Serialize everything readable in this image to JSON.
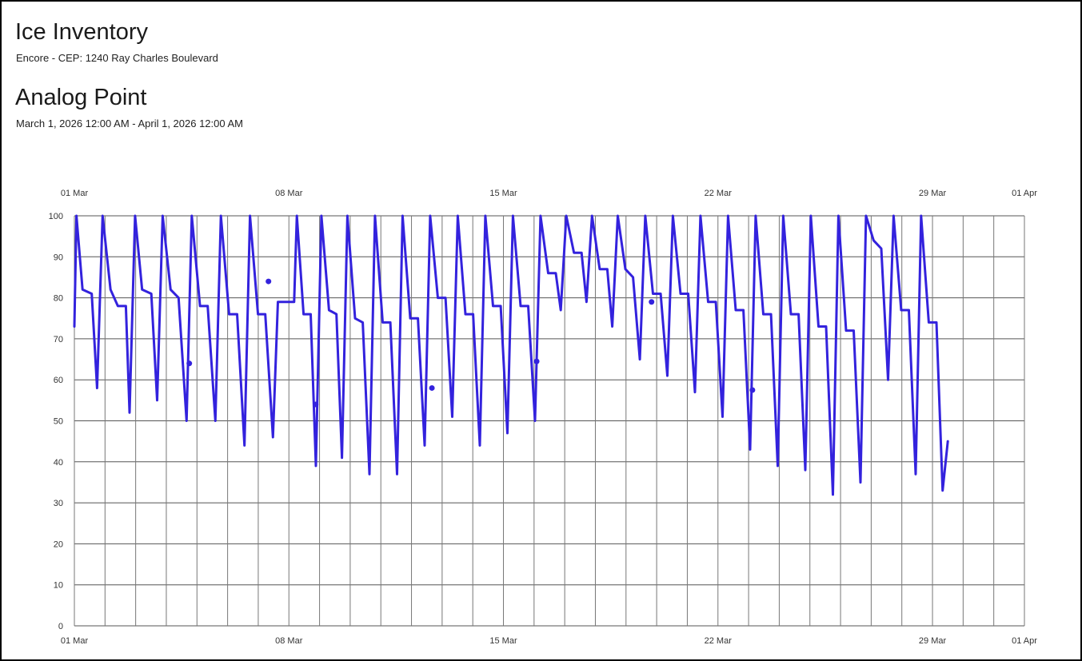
{
  "header": {
    "title": "Ice Inventory",
    "subtitle": "Encore - CEP: 1240 Ray Charles Boulevard"
  },
  "section": {
    "title": "Analog Point",
    "date_range": "March 1, 2026 12:00 AM - April 1, 2026 12:00 AM"
  },
  "chart_data": {
    "type": "line",
    "title": "Analog Point",
    "xlabel": "",
    "ylabel": "",
    "x_unit": "day",
    "x_range": [
      "2026-03-01",
      "2026-04-01"
    ],
    "ylim": [
      0,
      100
    ],
    "yticks": [
      0,
      10,
      20,
      30,
      40,
      50,
      60,
      70,
      80,
      90,
      100
    ],
    "xticks": [
      {
        "date": "2026-03-01",
        "label": "01 Mar"
      },
      {
        "date": "2026-03-08",
        "label": "08 Mar"
      },
      {
        "date": "2026-03-15",
        "label": "15 Mar"
      },
      {
        "date": "2026-03-22",
        "label": "22 Mar"
      },
      {
        "date": "2026-03-29",
        "label": "29 Mar"
      },
      {
        "date": "2026-04-01",
        "label": "01 Apr"
      }
    ],
    "grid": true,
    "color": "#3322dd",
    "series": [
      {
        "name": "",
        "points": [
          [
            "2026-03-01 00:00",
            73
          ],
          [
            "2026-03-01 01:36",
            100
          ],
          [
            "2026-03-01 06:24",
            82
          ],
          [
            "2026-03-01 13:36",
            81
          ],
          [
            "2026-03-01 17:46",
            58
          ],
          [
            "2026-03-01 22:05",
            100
          ],
          [
            "2026-03-02 04:19",
            82
          ],
          [
            "2026-03-02 10:05",
            78
          ],
          [
            "2026-03-02 16:19",
            78
          ],
          [
            "2026-03-02 19:12",
            52
          ],
          [
            "2026-03-02 23:31",
            100
          ],
          [
            "2026-03-03 05:02",
            82
          ],
          [
            "2026-03-03 12:14",
            81
          ],
          [
            "2026-03-03 16:48",
            55
          ],
          [
            "2026-03-03 21:07",
            100
          ],
          [
            "2026-03-04 03:22",
            82
          ],
          [
            "2026-03-04 09:36",
            80
          ],
          [
            "2026-03-04 15:50",
            50
          ],
          [
            "2026-03-04 19:55",
            100
          ],
          [
            "2026-03-05 02:24",
            78
          ],
          [
            "2026-03-05 08:24",
            78
          ],
          [
            "2026-03-05 14:24",
            50
          ],
          [
            "2026-03-05 18:43",
            100
          ],
          [
            "2026-03-06 01:12",
            76
          ],
          [
            "2026-03-06 07:26",
            76
          ],
          [
            "2026-03-06 13:12",
            44
          ],
          [
            "2026-03-06 17:31",
            100
          ],
          [
            "2026-03-06 23:46",
            76
          ],
          [
            "2026-03-07 05:31",
            76
          ],
          [
            "2026-03-07 11:31",
            46
          ],
          [
            "2026-03-07 15:22",
            79
          ],
          [
            "2026-03-08 04:05",
            79
          ],
          [
            "2026-03-08 06:14",
            100
          ],
          [
            "2026-03-08 11:31",
            76
          ],
          [
            "2026-03-08 17:02",
            76
          ],
          [
            "2026-03-08 21:07",
            39
          ],
          [
            "2026-03-09 01:26",
            100
          ],
          [
            "2026-03-09 07:26",
            77
          ],
          [
            "2026-03-09 13:12",
            76
          ],
          [
            "2026-03-09 17:31",
            41
          ],
          [
            "2026-03-09 21:50",
            100
          ],
          [
            "2026-03-10 03:50",
            75
          ],
          [
            "2026-03-10 09:50",
            74
          ],
          [
            "2026-03-10 15:07",
            37
          ],
          [
            "2026-03-10 19:26",
            100
          ],
          [
            "2026-03-11 01:26",
            74
          ],
          [
            "2026-03-11 07:26",
            74
          ],
          [
            "2026-03-11 12:43",
            37
          ],
          [
            "2026-03-11 17:02",
            100
          ],
          [
            "2026-03-11 23:02",
            75
          ],
          [
            "2026-03-12 05:02",
            75
          ],
          [
            "2026-03-12 10:19",
            44
          ],
          [
            "2026-03-12 14:38",
            100
          ],
          [
            "2026-03-12 20:38",
            80
          ],
          [
            "2026-03-13 02:38",
            80
          ],
          [
            "2026-03-13 07:55",
            51
          ],
          [
            "2026-03-13 12:14",
            100
          ],
          [
            "2026-03-13 18:14",
            76
          ],
          [
            "2026-03-14 00:14",
            76
          ],
          [
            "2026-03-14 05:31",
            44
          ],
          [
            "2026-03-14 09:50",
            100
          ],
          [
            "2026-03-14 15:50",
            78
          ],
          [
            "2026-03-14 21:50",
            78
          ],
          [
            "2026-03-15 03:07",
            47
          ],
          [
            "2026-03-15 07:26",
            100
          ],
          [
            "2026-03-15 13:26",
            78
          ],
          [
            "2026-03-15 19:26",
            78
          ],
          [
            "2026-03-16 00:43",
            50
          ],
          [
            "2026-03-16 05:02",
            100
          ],
          [
            "2026-03-16 11:02",
            86
          ],
          [
            "2026-03-16 17:02",
            86
          ],
          [
            "2026-03-16 20:53",
            77
          ],
          [
            "2026-03-17 01:12",
            100
          ],
          [
            "2026-03-17 07:12",
            91
          ],
          [
            "2026-03-17 13:12",
            91
          ],
          [
            "2026-03-17 17:02",
            79
          ],
          [
            "2026-03-17 21:22",
            100
          ],
          [
            "2026-03-18 03:22",
            87
          ],
          [
            "2026-03-18 09:22",
            87
          ],
          [
            "2026-03-18 13:12",
            73
          ],
          [
            "2026-03-18 17:31",
            100
          ],
          [
            "2026-03-18 23:31",
            87
          ],
          [
            "2026-03-19 05:31",
            85
          ],
          [
            "2026-03-19 10:48",
            65
          ],
          [
            "2026-03-19 15:07",
            100
          ],
          [
            "2026-03-19 21:07",
            81
          ],
          [
            "2026-03-20 03:07",
            81
          ],
          [
            "2026-03-20 08:24",
            61
          ],
          [
            "2026-03-20 12:43",
            100
          ],
          [
            "2026-03-20 18:43",
            81
          ],
          [
            "2026-03-21 00:43",
            81
          ],
          [
            "2026-03-21 06:00",
            57
          ],
          [
            "2026-03-21 10:19",
            100
          ],
          [
            "2026-03-21 16:19",
            79
          ],
          [
            "2026-03-21 22:19",
            79
          ],
          [
            "2026-03-22 03:36",
            51
          ],
          [
            "2026-03-22 07:55",
            100
          ],
          [
            "2026-03-22 13:55",
            77
          ],
          [
            "2026-03-22 19:55",
            77
          ],
          [
            "2026-03-23 01:12",
            43
          ],
          [
            "2026-03-23 05:31",
            100
          ],
          [
            "2026-03-23 11:31",
            76
          ],
          [
            "2026-03-23 17:31",
            76
          ],
          [
            "2026-03-23 22:48",
            39
          ],
          [
            "2026-03-24 03:07",
            100
          ],
          [
            "2026-03-24 09:07",
            76
          ],
          [
            "2026-03-24 15:07",
            76
          ],
          [
            "2026-03-24 20:24",
            38
          ],
          [
            "2026-03-25 00:43",
            100
          ],
          [
            "2026-03-25 06:43",
            73
          ],
          [
            "2026-03-25 12:43",
            73
          ],
          [
            "2026-03-25 18:00",
            32
          ],
          [
            "2026-03-25 22:19",
            100
          ],
          [
            "2026-03-26 04:19",
            72
          ],
          [
            "2026-03-26 10:19",
            72
          ],
          [
            "2026-03-26 15:36",
            35
          ],
          [
            "2026-03-26 19:55",
            100
          ],
          [
            "2026-03-27 01:55",
            94
          ],
          [
            "2026-03-27 07:55",
            92
          ],
          [
            "2026-03-27 13:12",
            60
          ],
          [
            "2026-03-27 17:31",
            100
          ],
          [
            "2026-03-27 23:31",
            77
          ],
          [
            "2026-03-28 05:31",
            77
          ],
          [
            "2026-03-28 10:48",
            37
          ],
          [
            "2026-03-28 15:07",
            100
          ],
          [
            "2026-03-28 21:07",
            74
          ],
          [
            "2026-03-29 03:07",
            74
          ],
          [
            "2026-03-29 07:55",
            33
          ],
          [
            "2026-03-29 12:00",
            45
          ]
        ]
      }
    ],
    "markers": [
      [
        "2026-03-04 18:00",
        64
      ],
      [
        "2026-03-07 08:00",
        84
      ],
      [
        "2026-03-08 21:00",
        54
      ],
      [
        "2026-03-12 16:00",
        58
      ],
      [
        "2026-03-16 02:00",
        64.5
      ],
      [
        "2026-03-19 20:00",
        79
      ],
      [
        "2026-03-23 03:00",
        57.5
      ]
    ]
  }
}
